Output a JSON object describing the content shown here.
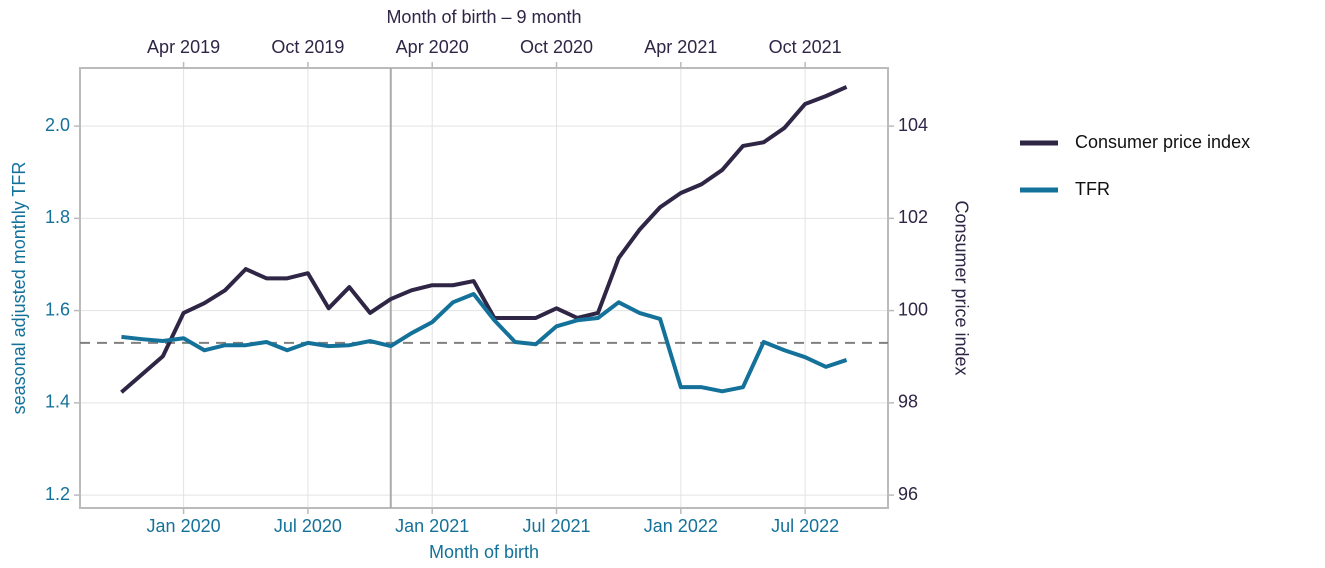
{
  "chart_data": {
    "type": "line",
    "title": "Month of birth – 9 month",
    "xlabel": "Month of birth",
    "ylabel": "seasonal adjusted monthly TFR",
    "y2label": "Consumer price index",
    "x": [
      "2019-10",
      "2019-11",
      "2019-12",
      "2020-01",
      "2020-02",
      "2020-03",
      "2020-04",
      "2020-05",
      "2020-06",
      "2020-07",
      "2020-08",
      "2020-09",
      "2020-10",
      "2020-11",
      "2020-12",
      "2021-01",
      "2021-02",
      "2021-03",
      "2021-04",
      "2021-05",
      "2021-06",
      "2021-07",
      "2021-08",
      "2021-09",
      "2021-10",
      "2021-11",
      "2021-12",
      "2022-01",
      "2022-02",
      "2022-03",
      "2022-04",
      "2022-05",
      "2022-06",
      "2022-07",
      "2022-08",
      "2022-09"
    ],
    "series": [
      {
        "name": "Consumer price index",
        "color": "#2f2545",
        "axis": "y2",
        "values": [
          98.23,
          98.62,
          99.01,
          99.95,
          100.16,
          100.44,
          100.9,
          100.7,
          100.7,
          100.81,
          100.05,
          100.51,
          99.95,
          100.25,
          100.44,
          100.55,
          100.55,
          100.64,
          99.84,
          99.84,
          99.84,
          100.05,
          99.84,
          99.95,
          101.14,
          101.75,
          102.24,
          102.55,
          102.74,
          103.05,
          103.57,
          103.65,
          103.96,
          104.48,
          104.65,
          104.85
        ]
      },
      {
        "name": "TFR",
        "color": "#14729a",
        "values": [
          1.543,
          1.538,
          1.534,
          1.54,
          1.514,
          1.525,
          1.525,
          1.532,
          1.514,
          1.53,
          1.523,
          1.525,
          1.534,
          1.523,
          1.551,
          1.575,
          1.618,
          1.636,
          1.579,
          1.532,
          1.527,
          1.566,
          1.579,
          1.584,
          1.618,
          1.595,
          1.582,
          1.434,
          1.434,
          1.425,
          1.434,
          1.532,
          1.514,
          1.499,
          1.478,
          1.493
        ]
      }
    ],
    "xlim": [
      "2019-08",
      "2022-11"
    ],
    "xticks": [
      {
        "value": "2020-01",
        "label": "Jan 2020"
      },
      {
        "value": "2020-07",
        "label": "Jul 2020"
      },
      {
        "value": "2021-01",
        "label": "Jan 2021"
      },
      {
        "value": "2021-07",
        "label": "Jul 2021"
      },
      {
        "value": "2022-01",
        "label": "Jan 2022"
      },
      {
        "value": "2022-07",
        "label": "Jul 2022"
      }
    ],
    "x2_shift_months": 9,
    "x2ticks": [
      {
        "value": "2019-04",
        "label": "Apr 2019"
      },
      {
        "value": "2019-10",
        "label": "Oct 2019"
      },
      {
        "value": "2020-04",
        "label": "Apr 2020"
      },
      {
        "value": "2020-10",
        "label": "Oct 2020"
      },
      {
        "value": "2021-04",
        "label": "Apr 2021"
      },
      {
        "value": "2021-10",
        "label": "Oct 2021"
      }
    ],
    "ylim": [
      1.172,
      2.126
    ],
    "yticks": [
      1.2,
      1.4,
      1.6,
      1.8,
      {
        "value": 2,
        "label": "2.0"
      }
    ],
    "y2lim": [
      95.72,
      105.26
    ],
    "y2ticks": [
      96,
      98,
      100,
      102,
      104
    ],
    "grid": true,
    "legend": "right",
    "reference_lines": [
      {
        "axis": "x",
        "value": "2020-11",
        "color": "#aaaaaa",
        "style": "solid"
      },
      {
        "axis": "y",
        "value": 1.53,
        "color": "#808080",
        "style": "dashed"
      }
    ]
  }
}
